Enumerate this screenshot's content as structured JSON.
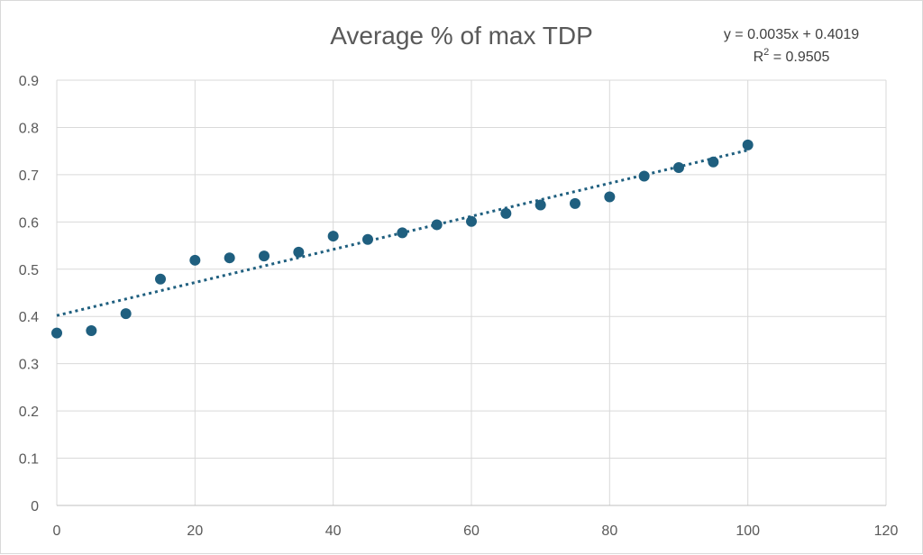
{
  "chart_data": {
    "type": "scatter",
    "title": "Average % of max TDP",
    "xlabel": "",
    "ylabel": "",
    "xlim": [
      0,
      120
    ],
    "ylim": [
      0,
      0.9
    ],
    "x_ticks": [
      "0",
      "20",
      "40",
      "60",
      "80",
      "100",
      "120"
    ],
    "y_ticks": [
      "0",
      "0.1",
      "0.2",
      "0.3",
      "0.4",
      "0.5",
      "0.6",
      "0.7",
      "0.8",
      "0.9"
    ],
    "grid": true,
    "legend": "none",
    "marker_color": "#1f5f7f",
    "trendline_color": "#1f5f7f",
    "series": [
      {
        "x": [
          0,
          5,
          10,
          15,
          20,
          25,
          30,
          35,
          40,
          45,
          50,
          55,
          60,
          65,
          70,
          75,
          80,
          85,
          90,
          95,
          100
        ],
        "y": [
          0.365,
          0.37,
          0.406,
          0.479,
          0.519,
          0.524,
          0.528,
          0.536,
          0.57,
          0.563,
          0.577,
          0.594,
          0.601,
          0.618,
          0.636,
          0.639,
          0.653,
          0.697,
          0.715,
          0.727,
          0.763
        ]
      }
    ],
    "trendline": {
      "type": "linear",
      "slope": 0.0035,
      "intercept": 0.4019,
      "x_range": [
        0,
        100
      ],
      "equation_label": "y = 0.0035x + 0.4019",
      "r2_prefix": "R",
      "r2_sup": "2",
      "r2_value": " = 0.9505"
    }
  }
}
